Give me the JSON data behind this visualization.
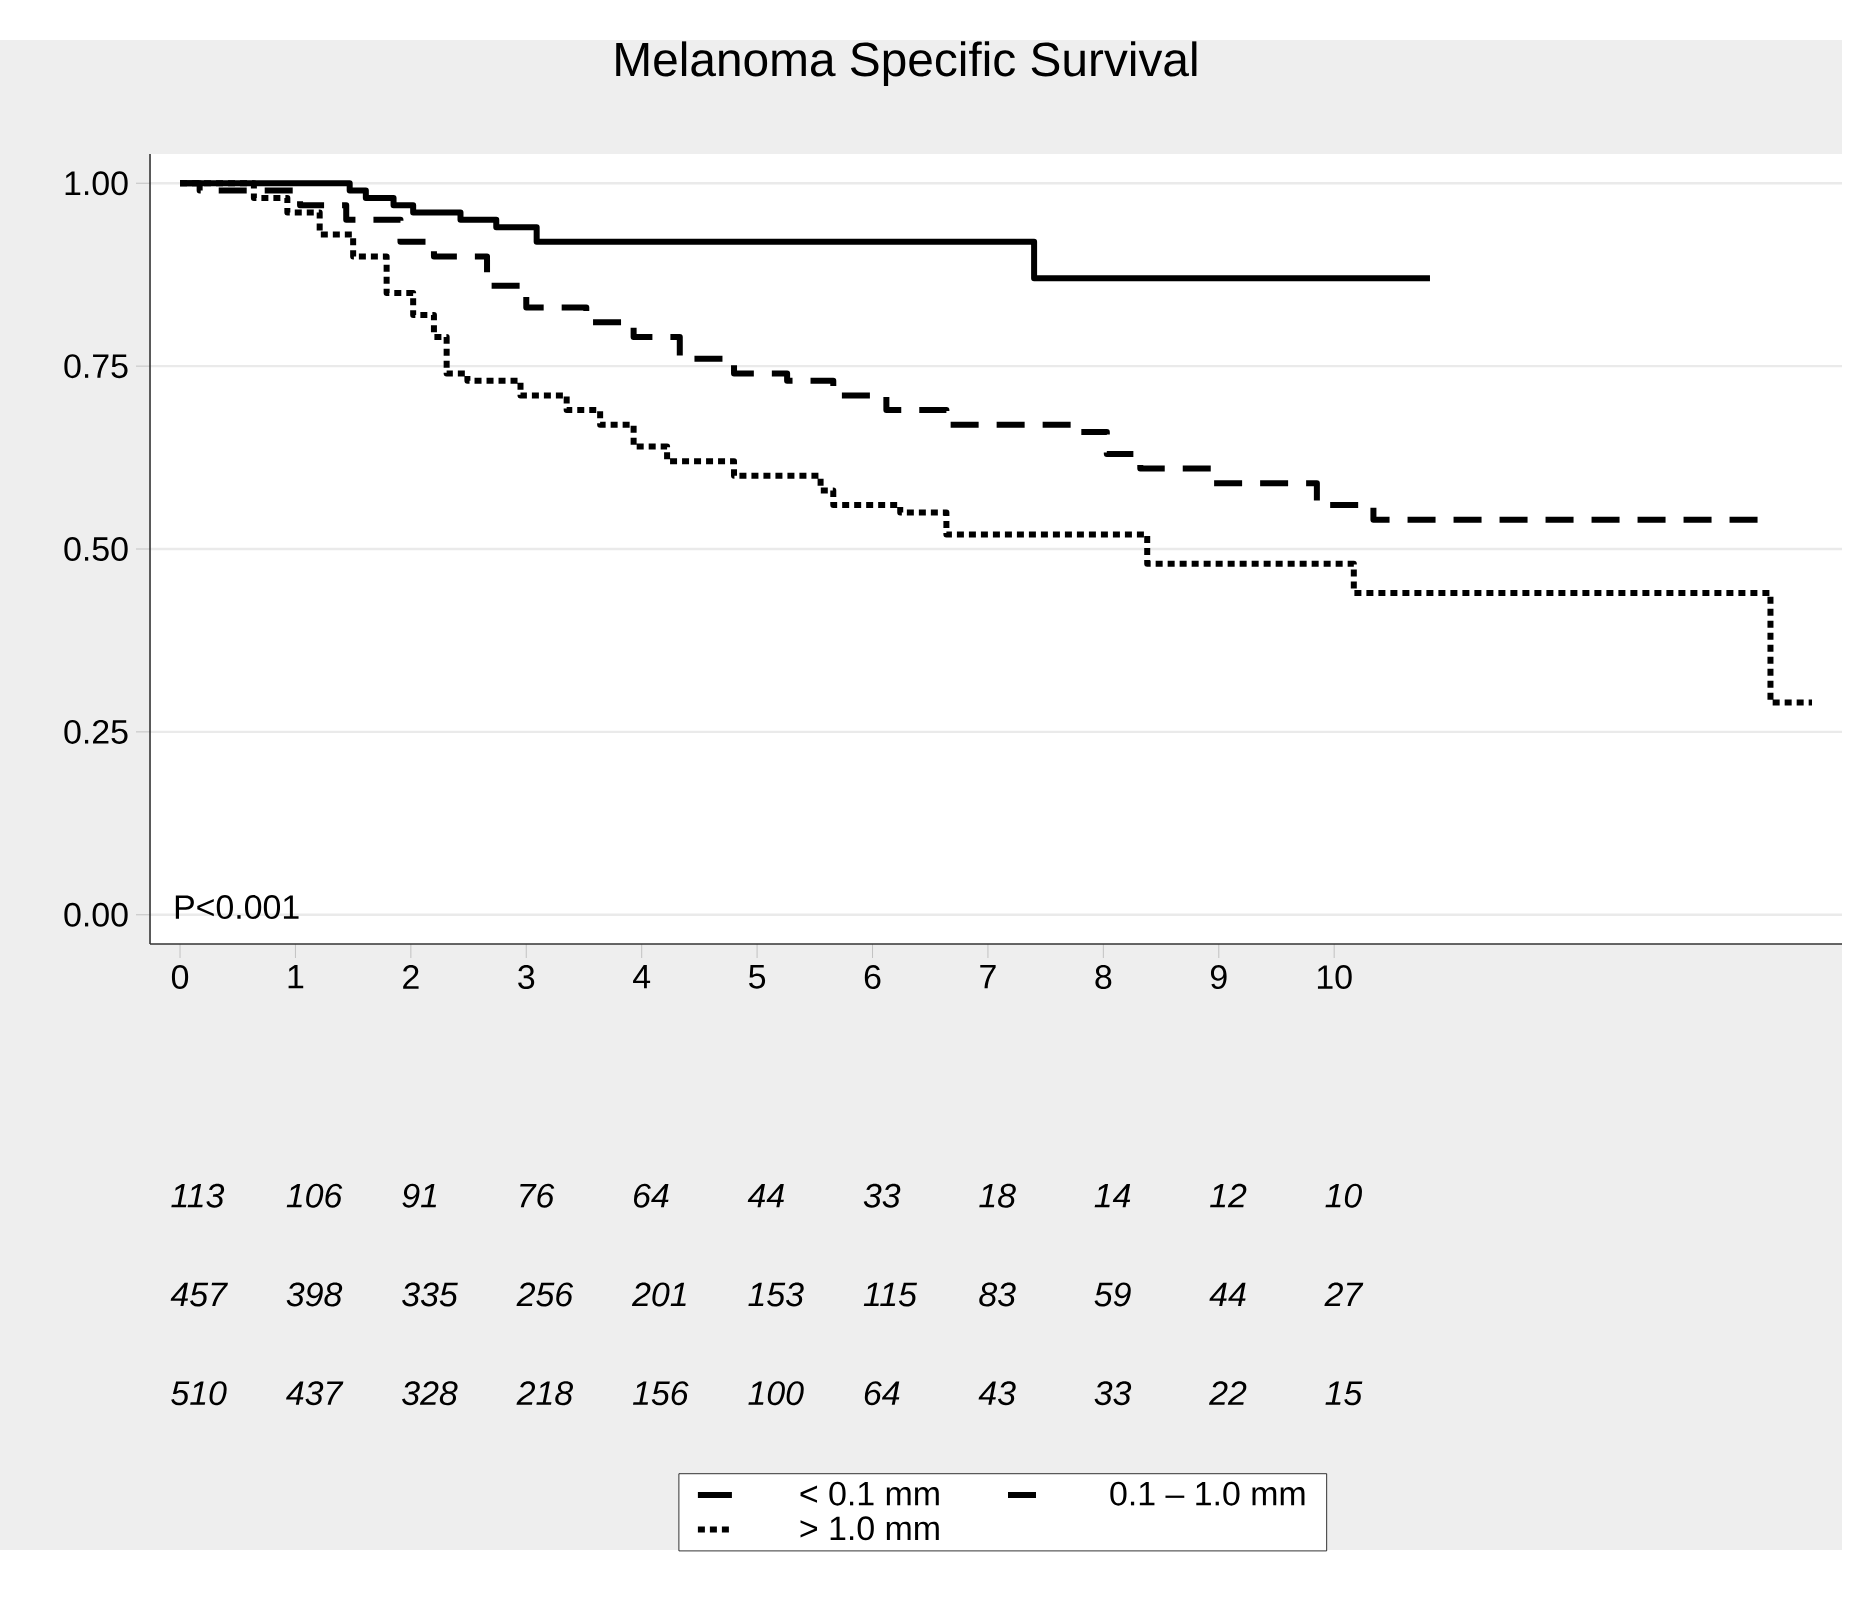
{
  "chart_data": {
    "type": "step",
    "title": "Melanoma Specific Survival",
    "xlim": [
      -0.26,
      14.4
    ],
    "ylim": [
      -0.04,
      1.04
    ],
    "xticks": [
      0,
      1,
      2,
      3,
      4,
      5,
      6,
      7,
      8,
      9,
      10
    ],
    "yticks": [
      {
        "value": 0,
        "label": "0.00"
      },
      {
        "value": 0.25,
        "label": "0.25"
      },
      {
        "value": 0.5,
        "label": "0.50"
      },
      {
        "value": 0.75,
        "label": "0.75"
      },
      {
        "value": 1,
        "label": "1.00"
      }
    ],
    "grid": "y",
    "legend": "bottom",
    "series": [
      {
        "name": "< 0.1 mm",
        "color": "#000000",
        "line_style": "solid",
        "x": [
          0,
          1.47,
          1.61,
          1.85,
          2.02,
          2.43,
          2.74,
          3.09,
          7.4,
          10.83
        ],
        "values": [
          1.0,
          0.99,
          0.98,
          0.97,
          0.96,
          0.95,
          0.94,
          0.92,
          0.87,
          0.87
        ]
      },
      {
        "name": "0.1 – 1.0 mm",
        "color": "#000000",
        "line_style": "dashed",
        "x": [
          0,
          0.17,
          0.64,
          1.04,
          1.44,
          1.91,
          2.2,
          2.66,
          3.0,
          3.52,
          3.93,
          4.33,
          4.8,
          5.26,
          5.66,
          6.12,
          6.64,
          7.22,
          7.8,
          8.03,
          8.32,
          8.95,
          9.85,
          10.34,
          13.69
        ],
        "values": [
          1.0,
          0.99,
          0.99,
          0.97,
          0.95,
          0.92,
          0.9,
          0.86,
          0.83,
          0.81,
          0.79,
          0.76,
          0.74,
          0.73,
          0.71,
          0.69,
          0.67,
          0.67,
          0.66,
          0.63,
          0.61,
          0.59,
          0.56,
          0.54,
          0.54
        ]
      },
      {
        "name": "> 1.0 mm",
        "color": "#000000",
        "line_style": "dotted",
        "x": [
          0,
          0.35,
          0.64,
          0.93,
          1.21,
          1.5,
          1.79,
          2.02,
          2.2,
          2.31,
          2.49,
          2.95,
          3.35,
          3.64,
          3.93,
          4.22,
          4.8,
          5.55,
          5.66,
          6.24,
          6.64,
          8.38,
          10.17,
          13.78,
          14.14
        ],
        "values": [
          1.0,
          1.0,
          0.98,
          0.96,
          0.93,
          0.9,
          0.85,
          0.82,
          0.79,
          0.74,
          0.73,
          0.71,
          0.69,
          0.67,
          0.64,
          0.62,
          0.6,
          0.58,
          0.56,
          0.55,
          0.52,
          0.48,
          0.44,
          0.29,
          0.29
        ]
      }
    ],
    "annotations": [
      "P<0.001",
      "113",
      "106",
      "91",
      "76",
      "64",
      "44",
      "33",
      "18",
      "14",
      "12",
      "10",
      "457",
      "398",
      "335",
      "256",
      "201",
      "153",
      "115",
      "83",
      "59",
      "44",
      "27",
      "510",
      "437",
      "328",
      "218",
      "156",
      "100",
      "64",
      "43",
      "33",
      "22",
      "15"
    ]
  }
}
